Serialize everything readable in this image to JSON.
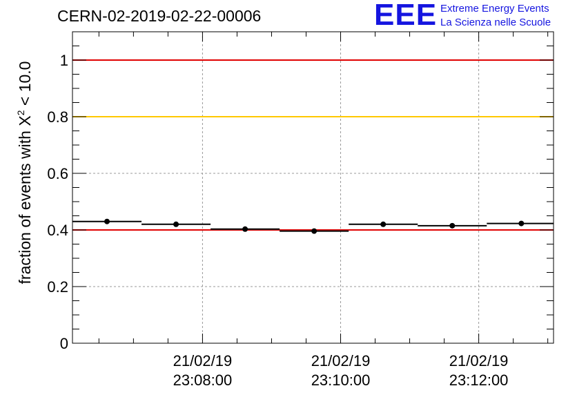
{
  "header": {
    "run_title": "CERN-02-2019-02-22-00006",
    "logo_mark": "EEE",
    "logo_line1": "Extreme Energy Events",
    "logo_line2": "La Scienza nelle Scuole"
  },
  "colors": {
    "logo_blue": "#1515e0",
    "red_ref": "#e00000",
    "yellow_ref": "#ffc800",
    "points": "#000000"
  },
  "chart_data": {
    "type": "scatter",
    "title": "CERN-02-2019-02-22-00006",
    "ylabel_prefix": "fraction of events with X",
    "ylabel_sup": "2",
    "ylabel_suffix": " < 10.0",
    "ylim": [
      0,
      1.1
    ],
    "yticks": [
      0,
      0.2,
      0.4,
      0.6,
      0.8,
      1
    ],
    "ytick_labels": [
      "0",
      "0.2",
      "0.4",
      "0.6",
      "0.8",
      "1"
    ],
    "xlim": [
      "21/02/19 23:06:07",
      "21/02/19 23:13:05"
    ],
    "xticks": [
      {
        "x": "21/02/19 23:08:00",
        "line1": "21/02/19",
        "line2": "23:08:00"
      },
      {
        "x": "21/02/19 23:10:00",
        "line1": "21/02/19",
        "line2": "23:10:00"
      },
      {
        "x": "21/02/19 23:12:00",
        "line1": "21/02/19",
        "line2": "23:12:00"
      }
    ],
    "grid": true,
    "reference_lines": [
      {
        "y": 1.0,
        "color": "#e00000"
      },
      {
        "y": 0.8,
        "color": "#ffc800"
      },
      {
        "y": 0.4,
        "color": "#e00000"
      }
    ],
    "series": [
      {
        "points": [
          {
            "x": "21/02/19 23:06:37",
            "y": 0.43,
            "x_start": "21/02/19 23:06:07",
            "x_end": "21/02/19 23:07:07"
          },
          {
            "x": "21/02/19 23:07:37",
            "y": 0.42,
            "x_start": "21/02/19 23:07:07",
            "x_end": "21/02/19 23:08:07"
          },
          {
            "x": "21/02/19 23:08:37",
            "y": 0.403,
            "x_start": "21/02/19 23:08:07",
            "x_end": "21/02/19 23:09:07"
          },
          {
            "x": "21/02/19 23:09:37",
            "y": 0.396,
            "x_start": "21/02/19 23:09:07",
            "x_end": "21/02/19 23:10:07"
          },
          {
            "x": "21/02/19 23:10:37",
            "y": 0.42,
            "x_start": "21/02/19 23:10:07",
            "x_end": "21/02/19 23:11:07"
          },
          {
            "x": "21/02/19 23:11:37",
            "y": 0.415,
            "x_start": "21/02/19 23:11:07",
            "x_end": "21/02/19 23:12:07"
          },
          {
            "x": "21/02/19 23:12:37",
            "y": 0.423,
            "x_start": "21/02/19 23:12:07",
            "x_end": "21/02/19 23:13:05"
          }
        ]
      }
    ]
  }
}
